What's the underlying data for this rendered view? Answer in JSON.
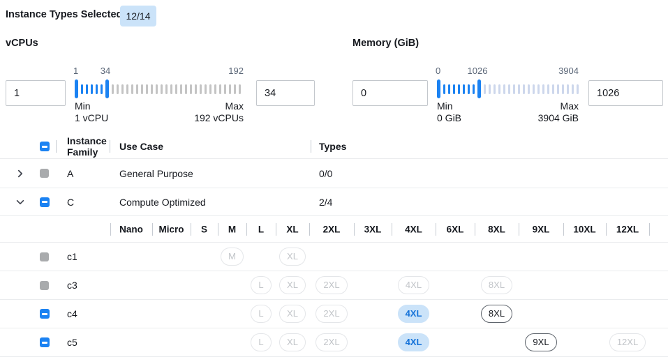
{
  "header": {
    "label": "Instance Types Selected:",
    "badge": "12/14"
  },
  "colors": {
    "accent_blue": "#1b82f2",
    "badge_bg": "#cbe3f9",
    "selected_pill_bg": "#cbe3f9",
    "selected_pill_text": "#1673d9",
    "vcpu_inactive_tick": "#c4c4c4",
    "memory_inactive_tick": "#cdd7ec",
    "disabled_checkbox_gray": "#a9abad"
  },
  "filters": {
    "vcpus": {
      "title": "vCPUs",
      "min_input": "1",
      "max_input": "34",
      "scale_min_label": "1",
      "scale_current_label": "34",
      "scale_max_label": "192",
      "min_caption": "Min",
      "min_value_caption": "1 vCPU",
      "max_caption": "Max",
      "max_value_caption": "192 vCPUs"
    },
    "memory": {
      "title": "Memory (GiB)",
      "min_input": "0",
      "max_input": "1026",
      "scale_min_label": "0",
      "scale_current_label": "1026",
      "scale_max_label": "3904",
      "min_caption": "Min",
      "min_value_caption": "0 GiB",
      "max_caption": "Max",
      "max_value_caption": "3904 GiB"
    }
  },
  "table": {
    "columns": {
      "family": "Instance Family",
      "use_case": "Use Case",
      "types": "Types"
    },
    "size_columns": [
      "Nano",
      "Micro",
      "S",
      "M",
      "L",
      "XL",
      "2XL",
      "3XL",
      "4XL",
      "6XL",
      "8XL",
      "9XL",
      "10XL",
      "12XL"
    ],
    "family_rows": [
      {
        "name": "A",
        "use_case": "General Purpose",
        "types": "0/0",
        "checkbox": "disabled",
        "expanded": false
      },
      {
        "name": "C",
        "use_case": "Compute Optimized",
        "types": "2/4",
        "checkbox": "indeterminate",
        "expanded": true
      }
    ],
    "instance_rows": [
      {
        "name": "c1",
        "checkbox": "disabled",
        "pills": [
          {
            "size": "M",
            "state": "disabled"
          },
          {
            "size": "XL",
            "state": "disabled"
          }
        ]
      },
      {
        "name": "c3",
        "checkbox": "disabled",
        "pills": [
          {
            "size": "L",
            "state": "disabled"
          },
          {
            "size": "XL",
            "state": "disabled"
          },
          {
            "size": "2XL",
            "state": "disabled"
          },
          {
            "size": "4XL",
            "state": "disabled"
          },
          {
            "size": "8XL",
            "state": "disabled"
          }
        ]
      },
      {
        "name": "c4",
        "checkbox": "indeterminate",
        "pills": [
          {
            "size": "L",
            "state": "disabled"
          },
          {
            "size": "XL",
            "state": "disabled"
          },
          {
            "size": "2XL",
            "state": "disabled"
          },
          {
            "size": "4XL",
            "state": "selected"
          },
          {
            "size": "8XL",
            "state": "available"
          }
        ]
      },
      {
        "name": "c5",
        "checkbox": "indeterminate",
        "pills": [
          {
            "size": "L",
            "state": "disabled"
          },
          {
            "size": "XL",
            "state": "disabled"
          },
          {
            "size": "2XL",
            "state": "disabled"
          },
          {
            "size": "4XL",
            "state": "selected"
          },
          {
            "size": "9XL",
            "state": "available"
          },
          {
            "size": "12XL",
            "state": "disabled"
          }
        ]
      }
    ]
  }
}
